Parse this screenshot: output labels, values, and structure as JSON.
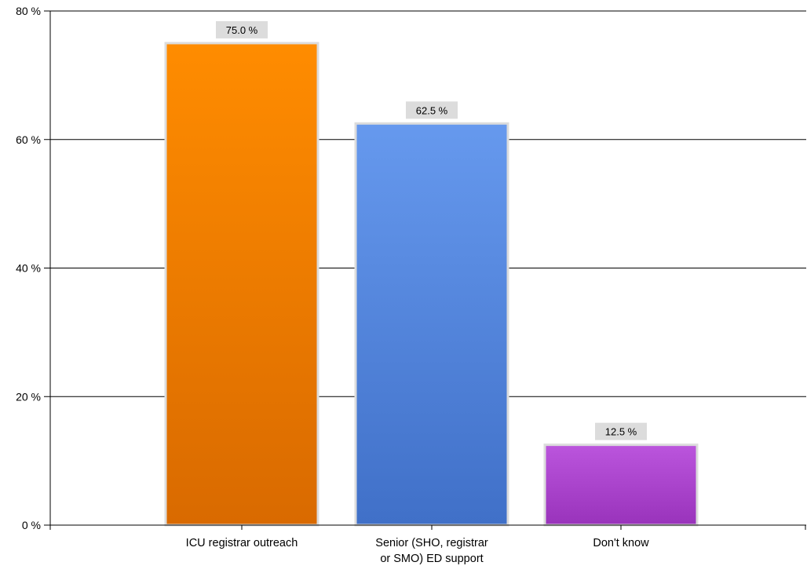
{
  "chart_data": {
    "type": "bar",
    "categories": [
      [
        "ICU registrar outreach"
      ],
      [
        "Senior (SHO, registrar",
        "or SMO) ED support"
      ],
      [
        "Don't know"
      ]
    ],
    "values": [
      75.0,
      62.5,
      12.5
    ],
    "data_labels": [
      "75.0 %",
      "62.5 %",
      "12.5 %"
    ],
    "y_ticks": [
      0,
      20,
      40,
      60,
      80
    ],
    "y_tick_labels": [
      "0 %",
      "20 %",
      "40 %",
      "60 %",
      "80 %"
    ],
    "ylim": [
      0,
      80
    ],
    "grid": true,
    "legend": "none",
    "title": "",
    "xlabel": "",
    "ylabel": "",
    "bar_colors": [
      {
        "top": "#ff8c00",
        "bottom": "#d96a00"
      },
      {
        "top": "#6699ee",
        "bottom": "#4070c8"
      },
      {
        "top": "#bb55dd",
        "bottom": "#9933bb"
      }
    ],
    "bar_border_color": "#dcdcdc",
    "data_label_bg": "#dcdcdc"
  }
}
